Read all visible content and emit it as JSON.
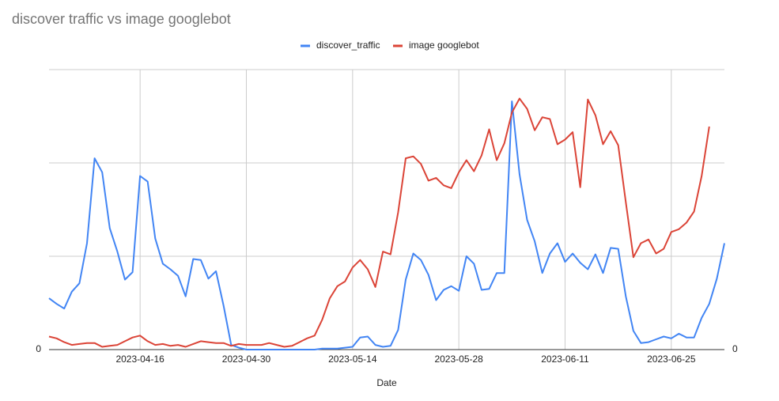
{
  "chart_data": {
    "type": "line",
    "title": "discover traffic vs image googlebot",
    "xlabel": "Date",
    "x": [
      "2023-04-04",
      "2023-04-05",
      "2023-04-06",
      "2023-04-07",
      "2023-04-08",
      "2023-04-09",
      "2023-04-10",
      "2023-04-11",
      "2023-04-12",
      "2023-04-13",
      "2023-04-14",
      "2023-04-15",
      "2023-04-16",
      "2023-04-17",
      "2023-04-18",
      "2023-04-19",
      "2023-04-20",
      "2023-04-21",
      "2023-04-22",
      "2023-04-23",
      "2023-04-24",
      "2023-04-25",
      "2023-04-26",
      "2023-04-27",
      "2023-04-28",
      "2023-04-29",
      "2023-04-30",
      "2023-05-01",
      "2023-05-02",
      "2023-05-03",
      "2023-05-04",
      "2023-05-05",
      "2023-05-06",
      "2023-05-07",
      "2023-05-08",
      "2023-05-09",
      "2023-05-10",
      "2023-05-11",
      "2023-05-12",
      "2023-05-13",
      "2023-05-14",
      "2023-05-15",
      "2023-05-16",
      "2023-05-17",
      "2023-05-18",
      "2023-05-19",
      "2023-05-20",
      "2023-05-21",
      "2023-05-22",
      "2023-05-23",
      "2023-05-24",
      "2023-05-25",
      "2023-05-26",
      "2023-05-27",
      "2023-05-28",
      "2023-05-29",
      "2023-05-30",
      "2023-05-31",
      "2023-06-01",
      "2023-06-02",
      "2023-06-03",
      "2023-06-04",
      "2023-06-05",
      "2023-06-06",
      "2023-06-07",
      "2023-06-08",
      "2023-06-09",
      "2023-06-10",
      "2023-06-11",
      "2023-06-12",
      "2023-06-13",
      "2023-06-14",
      "2023-06-15",
      "2023-06-16",
      "2023-06-17",
      "2023-06-18",
      "2023-06-19",
      "2023-06-20",
      "2023-06-21",
      "2023-06-22",
      "2023-06-23",
      "2023-06-24",
      "2023-06-25",
      "2023-06-26",
      "2023-06-27",
      "2023-06-28",
      "2023-06-29",
      "2023-06-30",
      "2023-07-01",
      "2023-07-02"
    ],
    "xticks": [
      "2023-04-16",
      "2023-04-30",
      "2023-05-14",
      "2023-05-28",
      "2023-06-11",
      "2023-06-25"
    ],
    "ylim": [
      0,
      3
    ],
    "yticks": [
      0
    ],
    "y2lim": [
      0,
      3
    ],
    "y2ticks": [
      0
    ],
    "ygrid": [
      0,
      1,
      2,
      3
    ],
    "legend": "top",
    "series": [
      {
        "name": "discover_traffic",
        "color": "#4285f4",
        "values": [
          0.55,
          0.49,
          0.44,
          0.62,
          0.71,
          1.14,
          2.05,
          1.9,
          1.3,
          1.05,
          0.75,
          0.83,
          1.86,
          1.8,
          1.19,
          0.92,
          0.86,
          0.79,
          0.57,
          0.97,
          0.96,
          0.76,
          0.84,
          0.47,
          0.05,
          0.02,
          0,
          0,
          0,
          0,
          0,
          0,
          0,
          0,
          0,
          0,
          0.01,
          0.01,
          0.01,
          0.02,
          0.03,
          0.13,
          0.14,
          0.05,
          0.03,
          0.04,
          0.21,
          0.75,
          1.03,
          0.96,
          0.8,
          0.53,
          0.64,
          0.68,
          0.63,
          1.0,
          0.92,
          0.64,
          0.65,
          0.82,
          0.82,
          2.66,
          1.88,
          1.39,
          1.16,
          0.82,
          1.03,
          1.14,
          0.94,
          1.03,
          0.93,
          0.86,
          1.02,
          0.82,
          1.09,
          1.08,
          0.57,
          0.2,
          0.07,
          0.08,
          0.11,
          0.14,
          0.12,
          0.17,
          0.13,
          0.13,
          0.34,
          0.49,
          0.76,
          1.14
        ]
      },
      {
        "name": "image googlebot",
        "color": "#db4437",
        "axis": "y2",
        "values": [
          0.14,
          0.12,
          0.08,
          0.05,
          0.06,
          0.07,
          0.07,
          0.03,
          0.04,
          0.05,
          0.09,
          0.13,
          0.15,
          0.09,
          0.05,
          0.06,
          0.04,
          0.05,
          0.03,
          0.06,
          0.09,
          0.08,
          0.07,
          0.07,
          0.04,
          0.06,
          0.05,
          0.05,
          0.05,
          0.07,
          0.05,
          0.03,
          0.04,
          0.08,
          0.12,
          0.15,
          0.32,
          0.55,
          0.68,
          0.73,
          0.88,
          0.96,
          0.86,
          0.67,
          1.05,
          1.02,
          1.47,
          2.05,
          2.07,
          1.99,
          1.81,
          1.84,
          1.76,
          1.73,
          1.9,
          2.03,
          1.91,
          2.08,
          2.36,
          2.03,
          2.21,
          2.54,
          2.69,
          2.58,
          2.35,
          2.49,
          2.47,
          2.2,
          2.25,
          2.33,
          1.74,
          2.68,
          2.51,
          2.2,
          2.34,
          2.19,
          1.58,
          0.99,
          1.14,
          1.18,
          1.03,
          1.08,
          1.26,
          1.29,
          1.36,
          1.48,
          1.86,
          2.39,
          null,
          null
        ]
      }
    ]
  }
}
